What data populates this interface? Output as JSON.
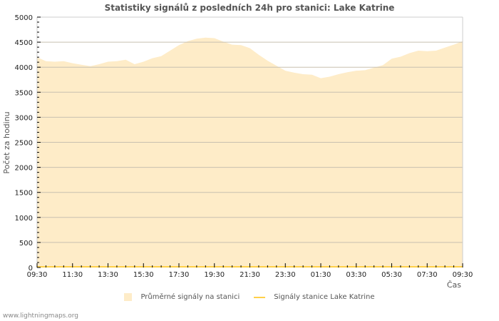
{
  "title": "Statistiky signálů z posledních 24h pro stanici: Lake Katrine",
  "footer": "www.lightningmaps.org",
  "legend": [
    {
      "label": "Průměrné signály na stanici",
      "type": "area",
      "color": "#feecc8"
    },
    {
      "label": "Signály stanice Lake Katrine",
      "type": "line",
      "color": "#ffd04a"
    }
  ],
  "colors": {
    "area_fill": "#feecc8",
    "line": "#ffd04a",
    "grid": "#c8c0b0",
    "frame": "#cccccc"
  },
  "chart_data": {
    "type": "area",
    "title": "Statistiky signálů z posledních 24h pro stanici: Lake Katrine",
    "xlabel": "Čas",
    "ylabel": "Počet za hodinu",
    "ylim": [
      0,
      5000
    ],
    "yticks": [
      0,
      500,
      1000,
      1500,
      2000,
      2500,
      3000,
      3500,
      4000,
      4500,
      5000
    ],
    "xtick_labels": [
      "09:30",
      "11:30",
      "13:30",
      "15:30",
      "17:30",
      "19:30",
      "21:30",
      "23:30",
      "01:30",
      "03:30",
      "05:30",
      "07:30",
      "09:30"
    ],
    "grid": true,
    "legend_position": "bottom",
    "x": [
      "09:30",
      "10:00",
      "10:30",
      "11:00",
      "11:30",
      "12:00",
      "12:30",
      "13:00",
      "13:30",
      "14:00",
      "14:30",
      "15:00",
      "15:30",
      "16:00",
      "16:30",
      "17:00",
      "17:30",
      "18:00",
      "18:30",
      "19:00",
      "19:30",
      "20:00",
      "20:30",
      "21:00",
      "21:30",
      "22:00",
      "22:30",
      "23:00",
      "23:30",
      "00:00",
      "00:30",
      "01:00",
      "01:30",
      "02:00",
      "02:30",
      "03:00",
      "03:30",
      "04:00",
      "04:30",
      "05:00",
      "05:30",
      "06:00",
      "06:30",
      "07:00",
      "07:30",
      "08:00",
      "08:30",
      "09:00",
      "09:30"
    ],
    "series": [
      {
        "name": "Průměrné signály na stanici",
        "type": "area",
        "values": [
          4200,
          4120,
          4110,
          4120,
          4080,
          4050,
          4020,
          4060,
          4110,
          4120,
          4150,
          4060,
          4110,
          4180,
          4220,
          4330,
          4440,
          4520,
          4570,
          4590,
          4580,
          4510,
          4450,
          4440,
          4380,
          4250,
          4130,
          4030,
          3930,
          3890,
          3860,
          3850,
          3780,
          3810,
          3860,
          3900,
          3930,
          3940,
          3990,
          4040,
          4170,
          4210,
          4280,
          4330,
          4320,
          4330,
          4390,
          4450,
          4520
        ]
      },
      {
        "name": "Signály stanice Lake Katrine",
        "type": "line",
        "values": [
          0,
          0,
          0,
          0,
          0,
          0,
          0,
          0,
          0,
          0,
          0,
          0,
          0,
          0,
          0,
          0,
          0,
          0,
          0,
          0,
          0,
          0,
          0,
          0,
          0,
          0,
          0,
          0,
          0,
          0,
          0,
          0,
          0,
          0,
          0,
          0,
          0,
          0,
          0,
          0,
          0,
          0,
          0,
          0,
          0,
          0,
          0,
          0,
          0
        ]
      }
    ]
  }
}
